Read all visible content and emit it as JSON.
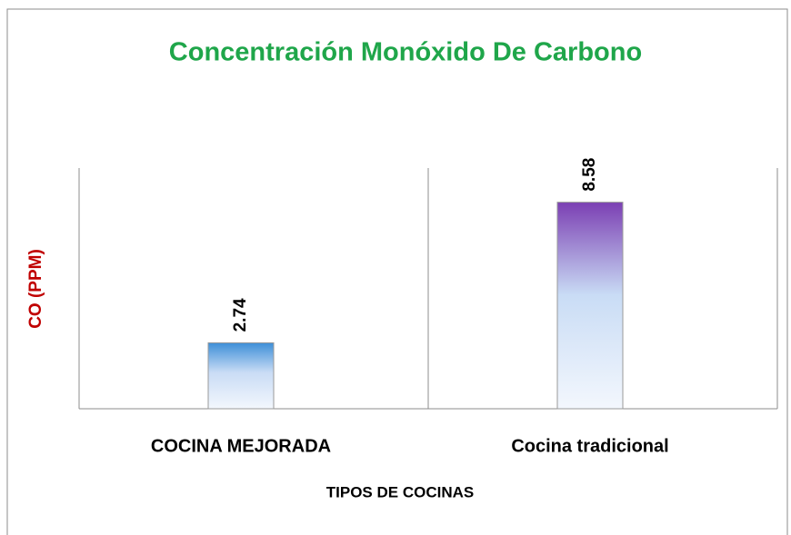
{
  "chart_data": {
    "type": "bar",
    "title": "Concentración Monóxido De Carbono",
    "x_label": "TIPOS DE COCINAS",
    "y_label": "CO (PPM)",
    "categories": [
      "COCINA MEJORADA",
      "Cocina tradicional"
    ],
    "values": [
      2.74,
      8.58
    ],
    "colors": [
      "#3d8fd8",
      "#7b3fb3"
    ],
    "ylim": [
      0,
      10
    ]
  }
}
